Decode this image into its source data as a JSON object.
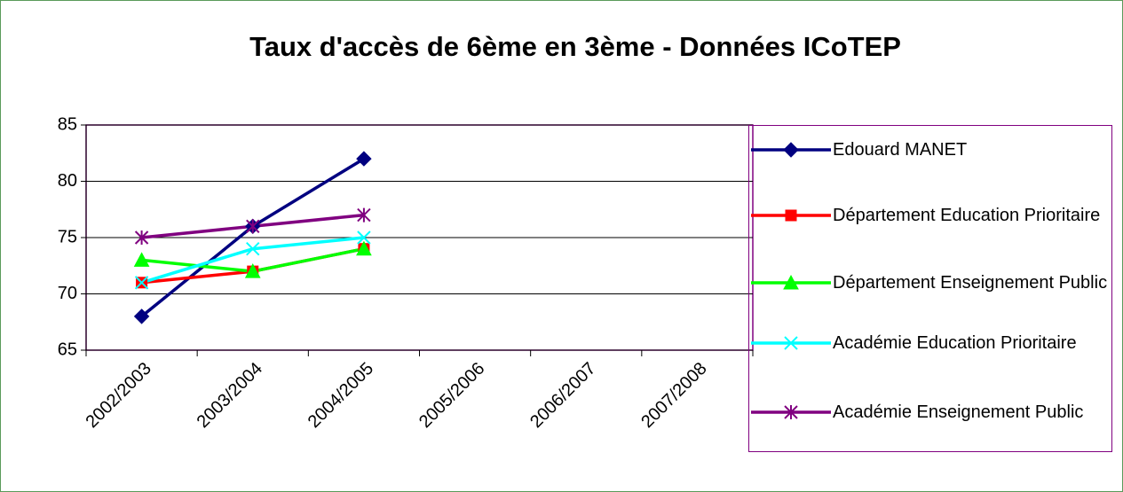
{
  "chart_data": {
    "type": "line",
    "title": "Taux d'accès de 6ème en 3ème - Données ICoTEP",
    "categories": [
      "2002/2003",
      "2003/2004",
      "2004/2005",
      "2005/2006",
      "2006/2007",
      "2007/2008"
    ],
    "series": [
      {
        "name": "Edouard MANET",
        "color": "#000080",
        "marker": "diamond",
        "values": [
          68,
          76,
          82,
          null,
          null,
          null
        ]
      },
      {
        "name": "Département Education Prioritaire",
        "color": "#ff0000",
        "marker": "square",
        "values": [
          71,
          72,
          74,
          null,
          null,
          null
        ]
      },
      {
        "name": "Département Enseignement Public",
        "color": "#00ff00",
        "marker": "triangle",
        "values": [
          73,
          72,
          74,
          null,
          null,
          null
        ]
      },
      {
        "name": "Académie Education Prioritaire",
        "color": "#00ffff",
        "marker": "x",
        "values": [
          71,
          74,
          75,
          null,
          null,
          null
        ]
      },
      {
        "name": "Académie Enseignement Public",
        "color": "#800080",
        "marker": "star",
        "values": [
          75,
          76,
          77,
          null,
          null,
          null
        ]
      }
    ],
    "ylim": [
      65,
      85
    ],
    "yticks": [
      65,
      70,
      75,
      80,
      85
    ],
    "grid": true,
    "legend": "right"
  }
}
